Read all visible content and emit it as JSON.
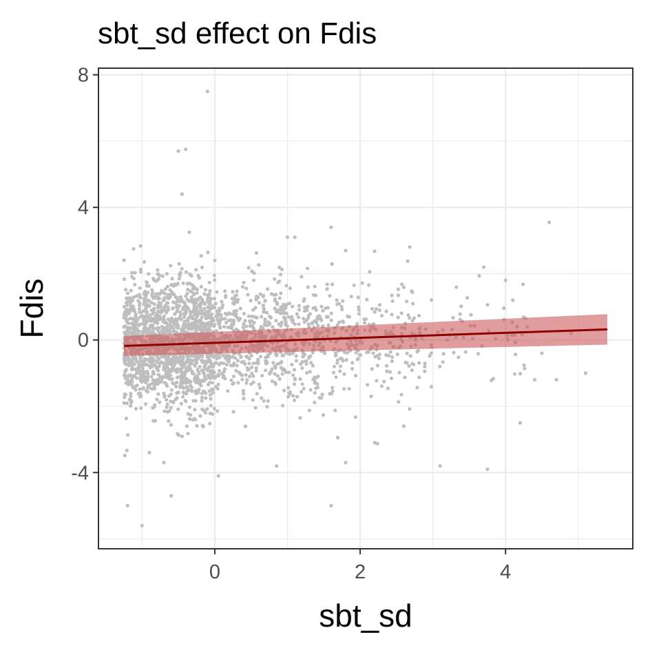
{
  "chart_data": {
    "type": "scatter",
    "title": "sbt_sd effect on Fdis",
    "xlabel": "sbt_sd",
    "ylabel": "Fdis",
    "xlim": [
      -1.6,
      5.75
    ],
    "ylim": [
      -6.3,
      8.2
    ],
    "x_ticks": [
      0,
      2,
      4
    ],
    "x_tick_labels": [
      "0",
      "2",
      "4"
    ],
    "y_ticks": [
      -4,
      0,
      4,
      8
    ],
    "y_tick_labels": [
      "-4",
      "0",
      "4",
      "8"
    ],
    "grid": true,
    "legend": "none",
    "points_color": "#bebebe",
    "fit_line_color": "#8b0000",
    "ribbon_color": "#cd5c5c",
    "fit": {
      "x_range": [
        -1.25,
        5.4
      ],
      "y_start": -0.18,
      "y_end": 0.32,
      "ci_start": [
        -0.48,
        0.12
      ],
      "ci_end": [
        -0.14,
        0.78
      ]
    },
    "outliers": [
      [
        -0.1,
        7.5
      ],
      [
        -0.5,
        5.7
      ],
      [
        -0.4,
        5.75
      ],
      [
        -0.45,
        4.4
      ],
      [
        -0.35,
        3.25
      ],
      [
        1.6,
        3.4
      ],
      [
        4.6,
        3.55
      ],
      [
        -1.2,
        -5.0
      ],
      [
        -1.0,
        -5.6
      ],
      [
        -0.6,
        -4.7
      ],
      [
        0.05,
        -4.1
      ],
      [
        1.6,
        -5.0
      ],
      [
        3.75,
        -3.9
      ],
      [
        3.1,
        -3.8
      ],
      [
        5.1,
        -1.0
      ],
      [
        4.2,
        -2.5
      ],
      [
        1.0,
        3.1
      ],
      [
        1.1,
        3.1
      ],
      [
        1.8,
        2.7
      ],
      [
        0.0,
        2.4
      ],
      [
        3.7,
        2.2
      ],
      [
        4.0,
        1.8
      ],
      [
        4.1,
        1.2
      ],
      [
        4.5,
        -0.4
      ],
      [
        4.7,
        -1.2
      ],
      [
        4.4,
        -1.2
      ],
      [
        2.2,
        -3.1
      ],
      [
        0.85,
        -3.8
      ],
      [
        1.8,
        -3.7
      ],
      [
        -0.7,
        -3.7
      ],
      [
        -0.9,
        -3.4
      ],
      [
        2.6,
        -2.6
      ],
      [
        4.3,
        0.4
      ],
      [
        4.9,
        0.2
      ],
      [
        3.2,
        0.0
      ]
    ],
    "cloud": [
      {
        "x": [
          -1.25,
          0.0
        ],
        "y_sd": 0.95,
        "count": 1600
      },
      {
        "x": [
          0.0,
          1.0
        ],
        "y_sd": 0.85,
        "count": 500
      },
      {
        "x": [
          1.0,
          2.0
        ],
        "y_sd": 0.9,
        "count": 280
      },
      {
        "x": [
          2.0,
          3.0
        ],
        "y_sd": 0.95,
        "count": 140
      },
      {
        "x": [
          3.0,
          4.3
        ],
        "y_sd": 0.95,
        "count": 50
      }
    ]
  }
}
